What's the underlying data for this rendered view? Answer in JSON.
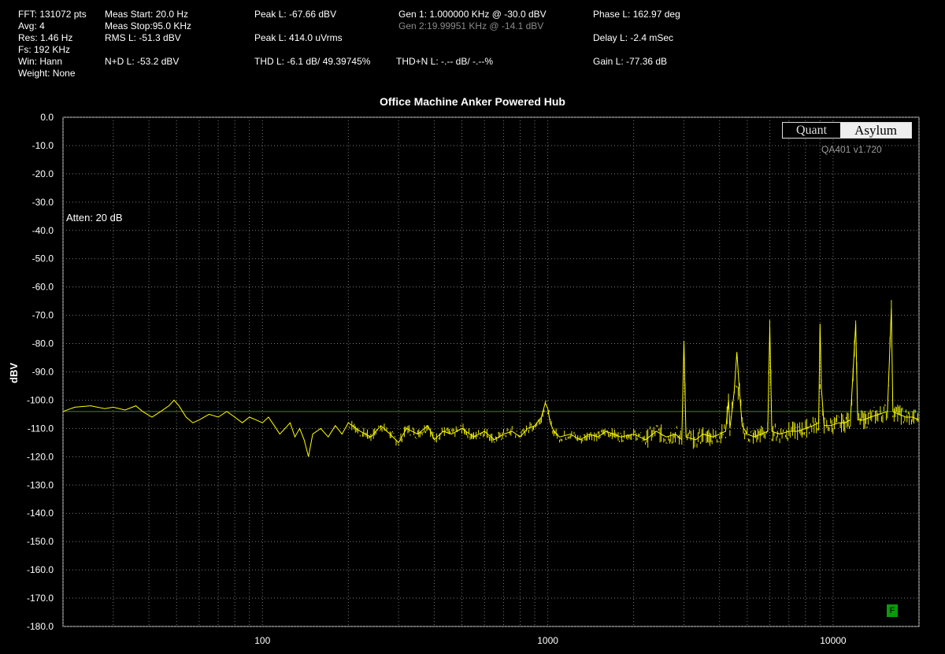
{
  "stats": {
    "col1": [
      "FFT: 131072 pts",
      "Avg: 4",
      "Res: 1.46 Hz",
      "Fs: 192 KHz",
      "Win: Hann",
      "Weight: None"
    ],
    "col2": [
      "Meas Start: 20.0 Hz",
      "Meas Stop:95.0 KHz",
      "RMS L: -51.3 dBV",
      "N+D L: -53.2 dBV"
    ],
    "col3": [
      "Peak L: -67.66 dBV",
      "Peak L: 414.0 uVrms",
      "THD L: -6.1 dB/ 49.39745%"
    ],
    "col4": [
      "Gen 1: 1.000000 KHz @ -30.0  dBV",
      "Gen 2:19.99951 KHz @ -14.1  dBV",
      "THD+N L: -.-- dB/ -.--%"
    ],
    "col5": [
      "Phase L: 162.97 deg",
      "Delay L: -2.4 mSec",
      "Gain L: -77.36 dB"
    ]
  },
  "logo": {
    "left": "Quant",
    "right": "Asylum"
  },
  "version": "QA401 v1.720",
  "annotation": "Atten: 20 dB",
  "badge": "F",
  "colors": {
    "trace": "#ffff00",
    "grid": "#7a7a7a",
    "reference": "#2f8f2f",
    "badge": "#0a9a0a"
  },
  "chart_data": {
    "type": "line",
    "title": "Office Machine Anker Powered Hub",
    "ylabel": "dBV",
    "xlabel": "",
    "x_scale": "log",
    "xlim": [
      20,
      20000
    ],
    "ylim": [
      -180,
      0
    ],
    "y_ticks": [
      "0.0",
      "-10.0",
      "-20.0",
      "-30.0",
      "-40.0",
      "-50.0",
      "-60.0",
      "-70.0",
      "-80.0",
      "-90.0",
      "-100.0",
      "-110.0",
      "-120.0",
      "-130.0",
      "-140.0",
      "-150.0",
      "-160.0",
      "-170.0",
      "-180.0"
    ],
    "x_ticks": [
      {
        "label": "100",
        "value": 100
      },
      {
        "label": "1000",
        "value": 1000
      },
      {
        "label": "10000",
        "value": 10000
      }
    ],
    "reference_line_dbv": -104,
    "grid": true,
    "series": [
      {
        "points": [
          [
            20,
            -104
          ],
          [
            22,
            -102.5
          ],
          [
            25,
            -102
          ],
          [
            28,
            -103
          ],
          [
            30,
            -102.5
          ],
          [
            33,
            -103.5
          ],
          [
            36,
            -102
          ],
          [
            38,
            -104
          ],
          [
            41,
            -106
          ],
          [
            44,
            -104
          ],
          [
            47,
            -102
          ],
          [
            49,
            -100
          ],
          [
            51,
            -102
          ],
          [
            54,
            -106
          ],
          [
            57,
            -108
          ],
          [
            60,
            -107
          ],
          [
            65,
            -105
          ],
          [
            70,
            -106
          ],
          [
            75,
            -104
          ],
          [
            80,
            -106
          ],
          [
            85,
            -108
          ],
          [
            90,
            -106
          ],
          [
            95,
            -107
          ],
          [
            100,
            -108
          ],
          [
            105,
            -106
          ],
          [
            110,
            -109
          ],
          [
            115,
            -112
          ],
          [
            120,
            -110
          ],
          [
            125,
            -108
          ],
          [
            130,
            -113
          ],
          [
            135,
            -110
          ],
          [
            140,
            -114
          ],
          [
            145,
            -120
          ],
          [
            150,
            -112
          ],
          [
            160,
            -110
          ],
          [
            170,
            -113
          ],
          [
            180,
            -109
          ],
          [
            190,
            -112
          ],
          [
            200,
            -108
          ],
          [
            220,
            -111
          ],
          [
            240,
            -113
          ],
          [
            260,
            -109
          ],
          [
            280,
            -112
          ],
          [
            300,
            -115
          ],
          [
            320,
            -110
          ],
          [
            350,
            -112
          ],
          [
            380,
            -109
          ],
          [
            400,
            -114
          ],
          [
            430,
            -111
          ],
          [
            460,
            -112
          ],
          [
            500,
            -110
          ],
          [
            550,
            -113
          ],
          [
            600,
            -111
          ],
          [
            650,
            -114
          ],
          [
            700,
            -112
          ],
          [
            750,
            -111
          ],
          [
            800,
            -113
          ],
          [
            850,
            -110
          ],
          [
            900,
            -109
          ],
          [
            950,
            -106
          ],
          [
            980,
            -101
          ],
          [
            1000,
            -103
          ],
          [
            1020,
            -108
          ],
          [
            1050,
            -111
          ],
          [
            1100,
            -113
          ],
          [
            1200,
            -112
          ],
          [
            1300,
            -114
          ],
          [
            1400,
            -112
          ],
          [
            1500,
            -113
          ],
          [
            1600,
            -111
          ],
          [
            1800,
            -113
          ],
          [
            2000,
            -112
          ],
          [
            2200,
            -114
          ],
          [
            2400,
            -111
          ],
          [
            2600,
            -113
          ],
          [
            2800,
            -112
          ],
          [
            2950,
            -114
          ],
          [
            3000,
            -79
          ],
          [
            3050,
            -113
          ],
          [
            3300,
            -114
          ],
          [
            3500,
            -112
          ],
          [
            3800,
            -113
          ],
          [
            4000,
            -112
          ],
          [
            4200,
            -111
          ],
          [
            4300,
            -100
          ],
          [
            4350,
            -110
          ],
          [
            4500,
            -97
          ],
          [
            4600,
            -83
          ],
          [
            4700,
            -97
          ],
          [
            4800,
            -109
          ],
          [
            5000,
            -112
          ],
          [
            5300,
            -113
          ],
          [
            5600,
            -112
          ],
          [
            5900,
            -111
          ],
          [
            6000,
            -74
          ],
          [
            6100,
            -111
          ],
          [
            6500,
            -112
          ],
          [
            7000,
            -111
          ],
          [
            7500,
            -111
          ],
          [
            8000,
            -110
          ],
          [
            8500,
            -109
          ],
          [
            8900,
            -108
          ],
          [
            9000,
            -73
          ],
          [
            9100,
            -96
          ],
          [
            9300,
            -109
          ],
          [
            9800,
            -109
          ],
          [
            10500,
            -108
          ],
          [
            11000,
            -108
          ],
          [
            11500,
            -107
          ],
          [
            12000,
            -73
          ],
          [
            12200,
            -107
          ],
          [
            12800,
            -107
          ],
          [
            13500,
            -106
          ],
          [
            14500,
            -105
          ],
          [
            15500,
            -104
          ],
          [
            16000,
            -67.7
          ],
          [
            16200,
            -104
          ],
          [
            17000,
            -105
          ],
          [
            18000,
            -106
          ],
          [
            19000,
            -106
          ],
          [
            20000,
            -107
          ]
        ]
      }
    ]
  }
}
